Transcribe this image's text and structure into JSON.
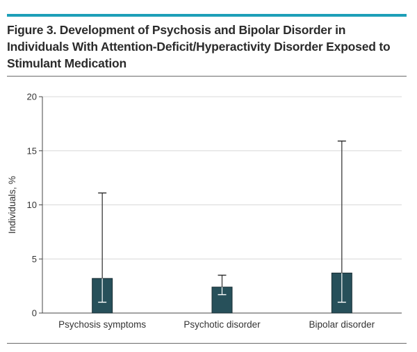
{
  "figure": {
    "title": "Figure 3. Development of Psychosis and Bipolar Disorder in Individuals With Attention-Deficit/Hyperactivity Disorder Exposed to Stimulant Medication"
  },
  "colors": {
    "accent_rule": "#1d9fb8",
    "bar_fill": "#27505a",
    "bar_stroke": "#1c2f35",
    "grid": "#d8d8d8",
    "axis": "#444444"
  },
  "chart_data": {
    "type": "bar",
    "title": "",
    "xlabel": "",
    "ylabel": "Individuals, %",
    "ylim": [
      0,
      20
    ],
    "yticks": [
      0,
      5,
      10,
      15,
      20
    ],
    "grid": true,
    "categories": [
      "Psychosis symptoms",
      "Psychotic disorder",
      "Bipolar disorder"
    ],
    "values": [
      3.2,
      2.4,
      3.7
    ],
    "error_low": [
      1.0,
      1.7,
      1.0
    ],
    "error_high": [
      11.1,
      3.5,
      15.9
    ]
  }
}
